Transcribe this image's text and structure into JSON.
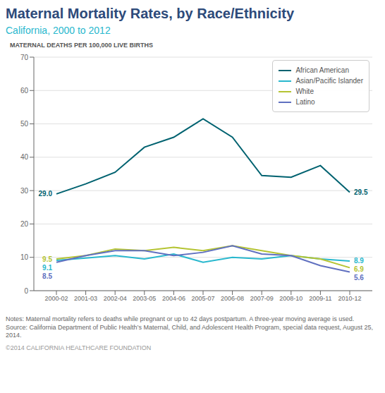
{
  "chart_data": {
    "type": "line",
    "title": "Maternal Mortality Rates, by Race/Ethnicity",
    "subtitle": "California, 2000 to 2012",
    "ylabel": "MATERNAL DEATHS PER 100,000 LIVE BIRTHS",
    "categories": [
      "2000-02",
      "2001-03",
      "2002-04",
      "2003-05",
      "2004-06",
      "2005-07",
      "2006-08",
      "2007-09",
      "2008-10",
      "2009-11",
      "2010-12"
    ],
    "series": [
      {
        "name": "African American",
        "color": "#006270",
        "values": [
          29.0,
          32.0,
          35.5,
          43.0,
          46.0,
          51.5,
          46.0,
          34.5,
          34.0,
          37.5,
          29.5
        ],
        "value_labels": [
          "29.0",
          null,
          null,
          null,
          null,
          null,
          null,
          null,
          null,
          null,
          "29.5"
        ]
      },
      {
        "name": "Asian/Pacific Islander",
        "color": "#29b8ce",
        "values": [
          9.1,
          9.8,
          10.5,
          9.5,
          11.0,
          8.5,
          10.0,
          9.5,
          10.5,
          9.5,
          8.9
        ],
        "value_labels": [
          "9.1",
          null,
          null,
          null,
          null,
          null,
          null,
          null,
          null,
          null,
          "8.9"
        ]
      },
      {
        "name": "White",
        "color": "#b5c433",
        "values": [
          9.5,
          10.5,
          12.5,
          12.0,
          13.0,
          12.0,
          13.5,
          12.0,
          10.5,
          9.5,
          6.9
        ],
        "value_labels": [
          "9.5",
          null,
          null,
          null,
          null,
          null,
          null,
          null,
          null,
          null,
          "6.9"
        ]
      },
      {
        "name": "Latino",
        "color": "#6070c0",
        "values": [
          8.5,
          10.5,
          12.0,
          12.0,
          10.5,
          11.5,
          13.5,
          11.0,
          10.5,
          7.5,
          5.6
        ],
        "value_labels": [
          "8.5",
          null,
          null,
          null,
          null,
          null,
          null,
          null,
          null,
          null,
          "5.6"
        ]
      }
    ],
    "ylim": [
      0,
      70
    ],
    "yticks": [
      0,
      10,
      20,
      30,
      40,
      50,
      60,
      70
    ],
    "grid": true,
    "legend": "upper right",
    "notes": [
      "Notes: Maternal mortality refers to deaths while pregnant or up to 42 days postpartum. A three-year moving average is used.",
      "Source: California Department of Public Health’s Maternal, Child, and Adolescent Health Program, special data request, August 25, 2014."
    ],
    "footer": "©2014 CALIFORNIA HEALTHCARE FOUNDATION"
  }
}
